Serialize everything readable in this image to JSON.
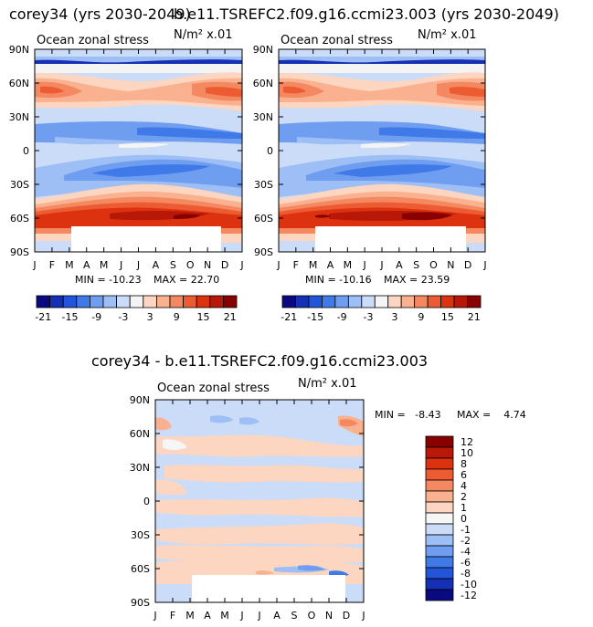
{
  "titles": {
    "left": "corey34 (yrs 2030-2049)",
    "right": "b.e11.TSREFC2.f09.g16.ccmi23.003 (yrs 2030-2049)",
    "diff": "corey34 - b.e11.TSREFC2.f09.g16.ccmi23.003"
  },
  "chart_data": [
    {
      "type": "heatmap",
      "name": "corey34 (yrs 2030-2049)",
      "title": "Ocean zonal stress",
      "units": "N/m² x.01",
      "x_ticks": [
        "J",
        "F",
        "M",
        "A",
        "M",
        "J",
        "J",
        "A",
        "S",
        "O",
        "N",
        "D",
        "J"
      ],
      "y_ticks": [
        "90N",
        "60N",
        "30N",
        "0",
        "30S",
        "60S",
        "90S"
      ],
      "ylim": [
        -90,
        90
      ],
      "min_label": "MIN = -10.23",
      "max_label": "MAX = 22.70",
      "min": -10.23,
      "max": 22.7,
      "colorbar_levels": [
        -21,
        -18,
        -15,
        -12,
        -9,
        -6,
        -3,
        0,
        3,
        6,
        9,
        12,
        15,
        18,
        21
      ],
      "colorbar_labels": [
        "-21",
        "-15",
        "-9",
        "-3",
        "3",
        "9",
        "15",
        "21"
      ]
    },
    {
      "type": "heatmap",
      "name": "b.e11.TSREFC2.f09.g16.ccmi23.003 (yrs 2030-2049)",
      "title": "Ocean zonal stress",
      "units": "N/m² x.01",
      "x_ticks": [
        "J",
        "F",
        "M",
        "A",
        "M",
        "J",
        "J",
        "A",
        "S",
        "O",
        "N",
        "D",
        "J"
      ],
      "y_ticks": [
        "90N",
        "60N",
        "30N",
        "0",
        "30S",
        "60S",
        "90S"
      ],
      "ylim": [
        -90,
        90
      ],
      "min_label": "MIN = -10.16",
      "max_label": "MAX = 23.59",
      "min": -10.16,
      "max": 23.59,
      "colorbar_levels": [
        -21,
        -18,
        -15,
        -12,
        -9,
        -6,
        -3,
        0,
        3,
        6,
        9,
        12,
        15,
        18,
        21
      ],
      "colorbar_labels": [
        "-21",
        "-15",
        "-9",
        "-3",
        "3",
        "9",
        "15",
        "21"
      ]
    },
    {
      "type": "heatmap",
      "name": "corey34 - b.e11.TSREFC2.f09.g16.ccmi23.003",
      "title": "Ocean zonal stress",
      "units": "N/m² x.01",
      "x_ticks": [
        "J",
        "F",
        "M",
        "A",
        "M",
        "J",
        "J",
        "A",
        "S",
        "O",
        "N",
        "D",
        "J"
      ],
      "y_ticks": [
        "90N",
        "60N",
        "30N",
        "0",
        "30S",
        "60S",
        "90S"
      ],
      "ylim": [
        -90,
        90
      ],
      "min_label": "MIN =   -8.43",
      "max_label": "MAX =    4.74",
      "min": -8.43,
      "max": 4.74,
      "colorbar_levels": [
        12,
        10,
        8,
        6,
        4,
        2,
        1,
        0,
        -1,
        -2,
        -4,
        -6,
        -8,
        -10,
        -12
      ],
      "colorbar_labels": [
        "12",
        "10",
        "8",
        "6",
        "4",
        "2",
        "1",
        "0",
        "-1",
        "-2",
        "-4",
        "-6",
        "-8",
        "-10",
        "-12"
      ]
    }
  ],
  "palette": [
    "#0a0a80",
    "#1530b4",
    "#2255d8",
    "#3f7ae8",
    "#6f9df0",
    "#9ebff5",
    "#cbdcf8",
    "#f4f4f4",
    "#fcd6c0",
    "#f9b190",
    "#f48860",
    "#ed5b33",
    "#dd3210",
    "#b81808",
    "#880000"
  ],
  "diff_palette": [
    "#880000",
    "#b81808",
    "#dd3210",
    "#ed5b33",
    "#f48860",
    "#f9b190",
    "#fcd6c0",
    "#f6f6f6",
    "#cbdcf8",
    "#9ebff5",
    "#6f9df0",
    "#3f7ae8",
    "#2255d8",
    "#1530b4",
    "#0a0a80"
  ]
}
